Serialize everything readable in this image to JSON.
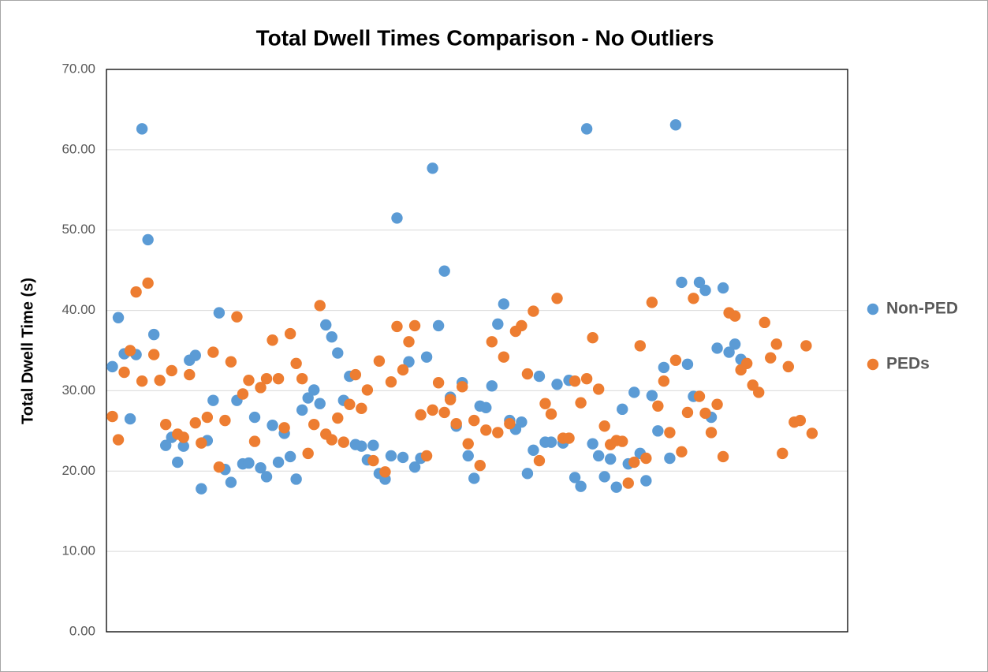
{
  "chart_data": {
    "type": "scatter",
    "title": "Total Dwell Times Comparison - No Outliers",
    "y_label": "Total Dwell Time (s)",
    "legend": "right",
    "grid": true,
    "xlim": [
      0,
      125
    ],
    "ylim": [
      0,
      70
    ],
    "yticks": [
      {
        "value": 0,
        "label": "0.00"
      },
      {
        "value": 10,
        "label": "10.00"
      },
      {
        "value": 20,
        "label": "20.00"
      },
      {
        "value": 30,
        "label": "30.00"
      },
      {
        "value": 40,
        "label": "40.00"
      },
      {
        "value": 50,
        "label": "50.00"
      },
      {
        "value": 60,
        "label": "60.00"
      },
      {
        "value": 70,
        "label": "70.00"
      }
    ],
    "series": [
      {
        "name": "Non-PED",
        "color": "#5b9bd5",
        "x": [
          1,
          2,
          3,
          4,
          5,
          6,
          7,
          8,
          10,
          11,
          12,
          13,
          14,
          15,
          16,
          17,
          18,
          19,
          20,
          21,
          22,
          23,
          24,
          25,
          26,
          27,
          28,
          29,
          30,
          31,
          32,
          33,
          34,
          35,
          36,
          37,
          38,
          39,
          40,
          41,
          42,
          43,
          44,
          45,
          46,
          47,
          48,
          49,
          50,
          51,
          52,
          53,
          54,
          55,
          56,
          57,
          58,
          59,
          60,
          61,
          62,
          63,
          64,
          65,
          66,
          67,
          68,
          69,
          70,
          71,
          72,
          73,
          74,
          75,
          76,
          77,
          78,
          79,
          80,
          81,
          82,
          83,
          84,
          85,
          86,
          87,
          88,
          89,
          90,
          91,
          92,
          93,
          94,
          95,
          96,
          97,
          98,
          99,
          100,
          101,
          102,
          103,
          104,
          105,
          106,
          107
        ],
        "values": [
          33,
          39.1,
          34.6,
          26.5,
          34.5,
          62.6,
          48.8,
          37,
          23.2,
          24.2,
          21.1,
          23.1,
          33.8,
          34.4,
          17.8,
          23.8,
          28.8,
          39.7,
          20.2,
          18.6,
          28.8,
          20.9,
          21,
          26.7,
          20.4,
          19.3,
          25.7,
          21.1,
          24.7,
          21.8,
          19,
          27.6,
          29.1,
          30.1,
          28.4,
          38.2,
          36.7,
          34.7,
          28.8,
          31.8,
          23.3,
          23.1,
          21.4,
          23.2,
          19.7,
          19,
          21.9,
          51.5,
          21.7,
          33.6,
          20.5,
          21.6,
          34.2,
          57.7,
          38.1,
          44.9,
          29.2,
          25.6,
          31,
          21.9,
          19.1,
          28.1,
          27.9,
          30.6,
          38.3,
          40.8,
          26.3,
          25.2,
          26.1,
          19.7,
          22.6,
          31.8,
          23.6,
          23.6,
          30.8,
          23.5,
          31.3,
          19.2,
          18.1,
          62.6,
          23.4,
          21.9,
          19.3,
          21.5,
          18,
          27.7,
          20.9,
          29.8,
          22.2,
          18.8,
          29.4,
          25,
          32.9,
          21.6,
          63.1,
          43.5,
          33.3,
          29.3,
          43.5,
          42.5,
          26.7,
          35.3,
          42.8,
          34.8,
          35.8,
          33.9
        ]
      },
      {
        "name": "PEDs",
        "color": "#ed7d31",
        "x": [
          1,
          2,
          3,
          4,
          5,
          6,
          7,
          8,
          9,
          10,
          11,
          12,
          13,
          14,
          15,
          16,
          17,
          18,
          19,
          20,
          21,
          22,
          23,
          24,
          25,
          26,
          27,
          28,
          29,
          30,
          31,
          32,
          33,
          34,
          35,
          36,
          37,
          38,
          39,
          40,
          41,
          42,
          43,
          44,
          45,
          46,
          47,
          48,
          49,
          50,
          51,
          52,
          53,
          54,
          55,
          56,
          57,
          58,
          59,
          60,
          61,
          62,
          63,
          64,
          65,
          66,
          67,
          68,
          69,
          70,
          71,
          72,
          73,
          74,
          75,
          76,
          77,
          78,
          79,
          80,
          81,
          82,
          83,
          84,
          85,
          86,
          87,
          88,
          89,
          90,
          91,
          92,
          93,
          94,
          95,
          96,
          97,
          98,
          99,
          100,
          101,
          102,
          103,
          104,
          105,
          106,
          107,
          108,
          109,
          110,
          111,
          112,
          113,
          114,
          115,
          116,
          117,
          118,
          119
        ],
        "values": [
          26.8,
          23.9,
          32.3,
          35,
          42.3,
          31.2,
          43.4,
          34.5,
          31.3,
          25.8,
          32.5,
          24.6,
          24.2,
          32,
          26,
          23.5,
          26.7,
          34.8,
          20.5,
          26.3,
          33.6,
          39.2,
          29.6,
          31.3,
          23.7,
          30.4,
          31.5,
          36.3,
          31.5,
          25.4,
          37.1,
          33.4,
          31.5,
          22.2,
          25.8,
          40.6,
          24.6,
          23.9,
          26.6,
          23.6,
          28.3,
          32,
          27.8,
          30.1,
          21.3,
          33.7,
          19.9,
          31.1,
          38,
          32.6,
          36.1,
          38.1,
          27,
          21.9,
          27.6,
          31,
          27.3,
          28.9,
          25.9,
          30.5,
          23.4,
          26.3,
          20.7,
          25.1,
          36.1,
          24.8,
          34.2,
          25.9,
          37.4,
          38.1,
          32.1,
          39.9,
          21.3,
          28.4,
          27.1,
          41.5,
          24.1,
          24.1,
          31.2,
          28.5,
          31.5,
          36.6,
          30.2,
          25.6,
          23.3,
          23.8,
          23.7,
          18.5,
          21.1,
          35.6,
          21.6,
          41,
          28.1,
          31.2,
          24.8,
          33.8,
          22.4,
          27.3,
          41.5,
          29.3,
          27.2,
          24.8,
          28.3,
          21.8,
          39.7,
          39.3,
          32.6,
          33.4,
          30.7,
          29.8,
          38.5,
          34.1,
          35.8,
          22.2,
          33,
          26.1,
          26.3,
          35.6,
          24.7
        ]
      }
    ]
  }
}
